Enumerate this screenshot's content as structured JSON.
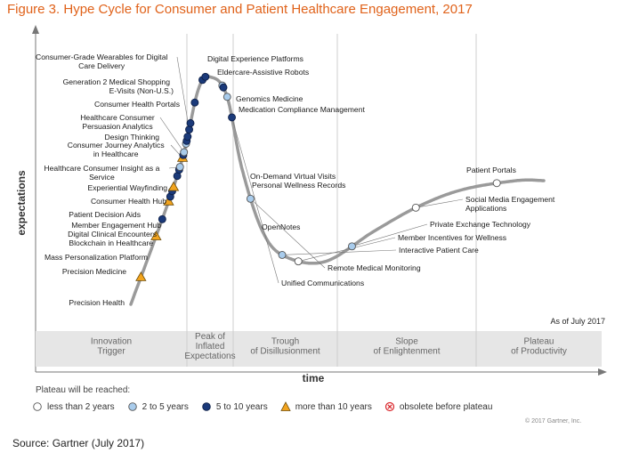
{
  "figure_title": "Figure 3. Hype Cycle for Consumer and Patient Healthcare Engagement, 2017",
  "source": "Source: Gartner (July 2017)",
  "copyright": "© 2017 Gartner, Inc.",
  "as_of": "As of July 2017",
  "plateau_title": "Plateau will be reached:",
  "colors": {
    "title": "#e0621a",
    "curve": "#9a9a9a",
    "band": "#e6e6e6",
    "dark_blue": "#1b3a7a",
    "light_blue": "#a9ccec",
    "orange": "#f2a41e",
    "white": "#ffffff",
    "red": "#d9262b"
  },
  "legend": [
    {
      "key": "lt2",
      "label": "less than 2 years",
      "icon": "white-circle-icon"
    },
    {
      "key": "2to5",
      "label": "2 to 5 years",
      "icon": "light-blue-circle-icon"
    },
    {
      "key": "5to10",
      "label": "5 to 10 years",
      "icon": "dark-blue-circle-icon"
    },
    {
      "key": "gt10",
      "label": "more than 10 years",
      "icon": "orange-triangle-icon"
    },
    {
      "key": "obsolete",
      "label": "obsolete before plateau",
      "icon": "red-x-circle-icon"
    }
  ],
  "chart_data": {
    "type": "scatter",
    "title": "Hype Cycle for Consumer and Patient Healthcare Engagement, 2017",
    "xlabel": "time",
    "ylabel": "expectations",
    "phases": [
      "Innovation Trigger",
      "Peak of Inflated Expectations",
      "Trough of Disillusionment",
      "Slope of Enlightenment",
      "Plateau of Productivity"
    ],
    "points": [
      {
        "label": "Precision Health",
        "t": 0.04,
        "plateau": "gt10"
      },
      {
        "label": "Precision Medicine",
        "t": 0.1,
        "plateau": "gt10"
      },
      {
        "label": "Mass Personalization Platform",
        "t": 0.125,
        "plateau": "5to10"
      },
      {
        "label": "Blockchain in Healthcare",
        "t": 0.151,
        "plateau": "gt10"
      },
      {
        "label": "Digital Clinical Encounters",
        "t": 0.158,
        "plateau": "5to10"
      },
      {
        "label": "Member Engagement Hub",
        "t": 0.166,
        "plateau": "5to10"
      },
      {
        "label": "Patient Decision Aids",
        "t": 0.172,
        "plateau": "gt10"
      },
      {
        "label": "Consumer Health Hub",
        "t": 0.188,
        "plateau": "5to10"
      },
      {
        "label": "Experiential Wayfinding",
        "t": 0.197,
        "plateau": "5to10"
      },
      {
        "label": "Healthcare Consumer Insight as a Service",
        "t": 0.201,
        "plateau": "2to5"
      },
      {
        "label": "Consumer Journey Analytics in Healthcare",
        "t": 0.214,
        "plateau": "gt10"
      },
      {
        "label": "Design Thinking",
        "t": 0.218,
        "plateau": "5to10"
      },
      {
        "label": "Healthcare Consumer Persuasion Analytics",
        "t": 0.222,
        "plateau": "2to5"
      },
      {
        "label": "Consumer Health Portals",
        "t": 0.234,
        "plateau": "2to5"
      },
      {
        "label": "E-Visits (Non-U.S.)",
        "t": 0.238,
        "plateau": "5to10"
      },
      {
        "label": "Generation 2 Medical Shopping",
        "t": 0.244,
        "plateau": "5to10"
      },
      {
        "label": "Consumer-Grade Wearables for Digital Care Delivery",
        "t": 0.254,
        "plateau": "5to10"
      },
      {
        "label": "Digital Experience Platforms",
        "t": 0.263,
        "plateau": "5to10"
      },
      {
        "label": "Eldercare-Assistive Robots",
        "t": 0.292,
        "plateau": "5to10"
      },
      {
        "label": "Genomics Medicine",
        "t": 0.325,
        "plateau": "5to10"
      },
      {
        "label": "Medication Compliance Management",
        "t": 0.331,
        "plateau": "5to10"
      },
      {
        "label": "On-Demand Virtual Visits",
        "t": 0.359,
        "plateau": "2to5"
      },
      {
        "label": "Personal Wellness Records",
        "t": 0.362,
        "plateau": "5to10"
      },
      {
        "label": "OpenNotes",
        "t": 0.376,
        "plateau": "2to5"
      },
      {
        "label": "Unified Communications",
        "t": 0.405,
        "plateau": "5to10"
      },
      {
        "label": "Remote Medical Monitoring",
        "t": 0.52,
        "plateau": "2to5"
      },
      {
        "label": "Interactive Patient Care",
        "t": 0.611,
        "plateau": "2to5"
      },
      {
        "label": "Member Incentives for Wellness",
        "t": 0.635,
        "plateau": "lt2"
      },
      {
        "label": "Private Exchange Technology",
        "t": 0.715,
        "plateau": "2to5"
      },
      {
        "label": "Social Media Engagement Applications",
        "t": 0.818,
        "plateau": "lt2"
      },
      {
        "label": "Patient Portals",
        "t": 0.935,
        "plateau": "lt2"
      }
    ]
  }
}
